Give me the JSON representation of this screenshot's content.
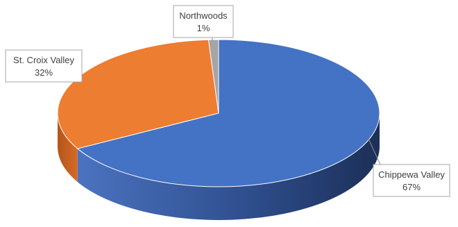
{
  "chart_data": {
    "type": "pie",
    "style": "3d",
    "legend": "none",
    "slices": [
      {
        "name": "Chippewa Valley",
        "value": 67,
        "label": "67%",
        "color": "#4472C4",
        "side_color": "#2F5597"
      },
      {
        "name": "St. Croix Valley",
        "value": 32,
        "label": "32%",
        "color": "#ED7D31",
        "side_color": "#C55A11"
      },
      {
        "name": "Northwoods",
        "value": 1,
        "label": "1%",
        "color": "#A5A5A5",
        "side_color": "#7F7F7F"
      }
    ]
  }
}
